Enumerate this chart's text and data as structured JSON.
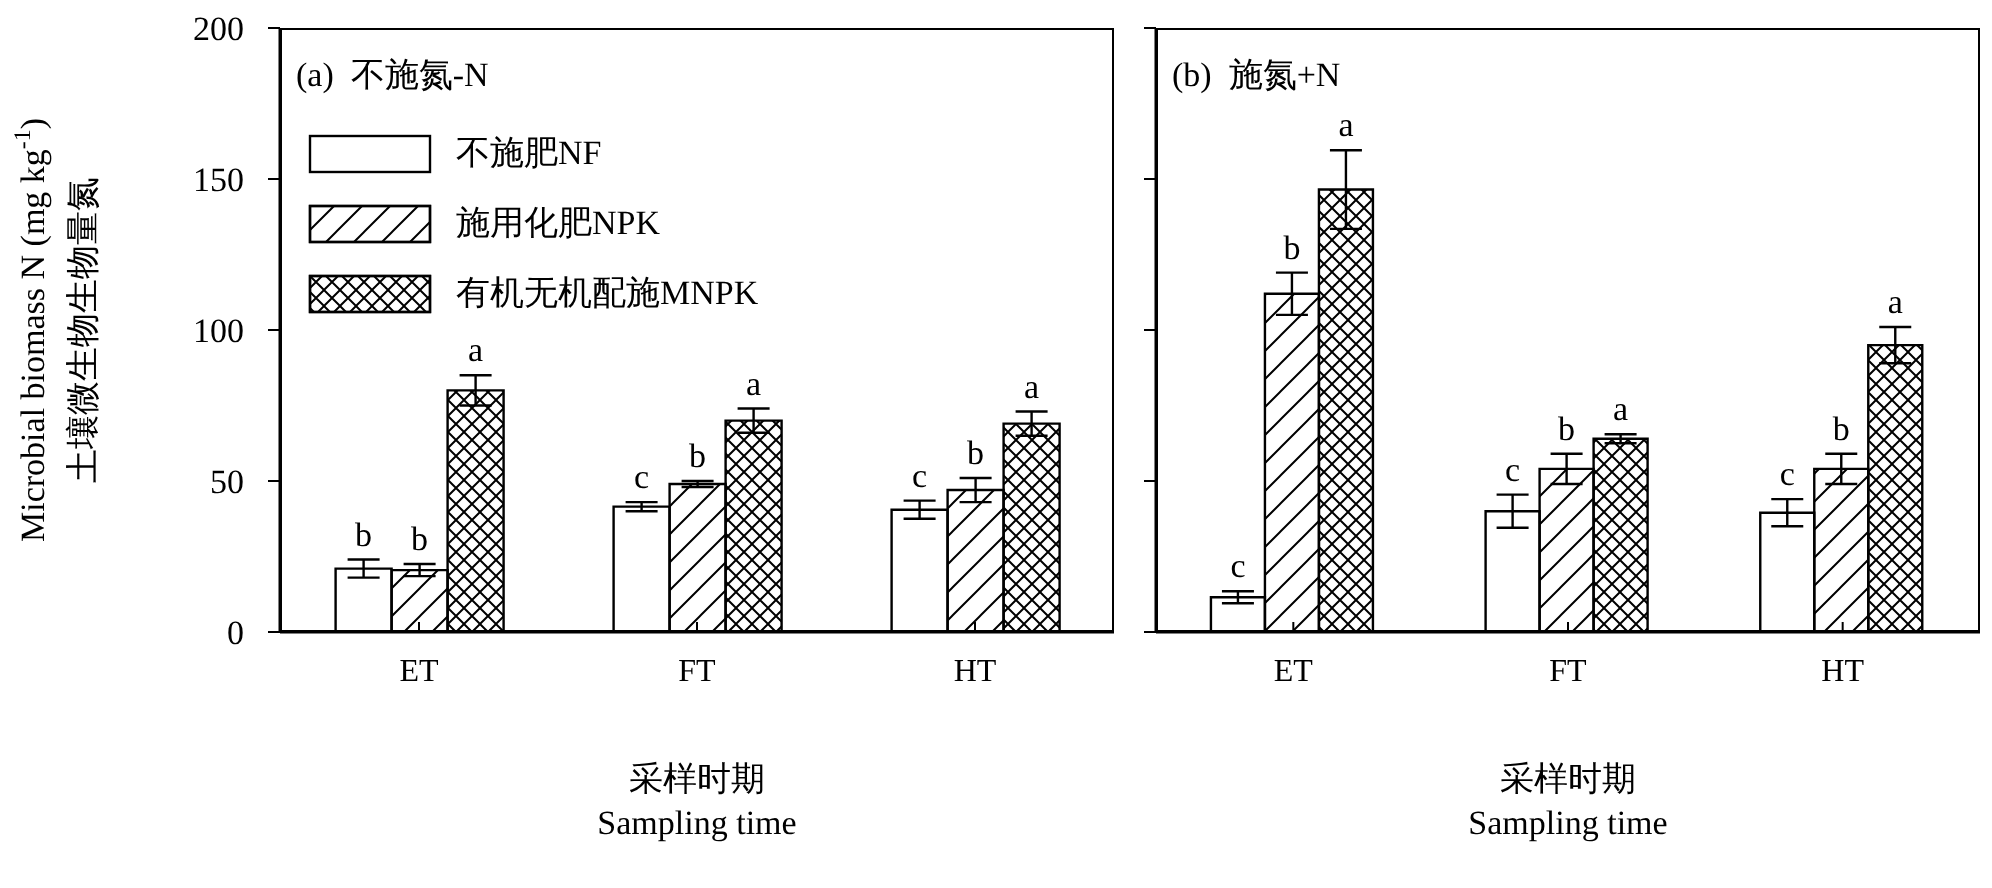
{
  "chart_data": [
    {
      "type": "bar",
      "title": "(a)  不施氮-N",
      "xlabel": "采样时期\nSampling time",
      "ylabel": "Microbial biomass N (mg kg$^{-1}$)\n土壤微生物生物量氮",
      "categories": [
        "ET",
        "FT",
        "HT"
      ],
      "series": [
        {
          "name": "不施肥NF",
          "color": "#000000",
          "values": [
            21,
            41.5,
            40.5
          ],
          "errors": [
            3,
            1.5,
            3
          ],
          "value_labels": [
            "b",
            "c",
            "c"
          ]
        },
        {
          "name": "施用化肥NPK",
          "color": "#000000",
          "values": [
            20.5,
            49,
            47
          ],
          "errors": [
            2,
            1,
            4
          ],
          "value_labels": [
            "b",
            "b",
            "b"
          ]
        },
        {
          "name": "有机无机配施MNPK",
          "color": "#000000",
          "values": [
            80,
            70,
            69
          ],
          "errors": [
            5,
            4,
            4
          ],
          "value_labels": [
            "a",
            "a",
            "a"
          ]
        }
      ],
      "ylim": [
        0,
        200
      ],
      "yticks": [
        0,
        50,
        100,
        150,
        200
      ],
      "grid": false,
      "legend": "top left"
    },
    {
      "type": "bar",
      "title": "(b)  施氮+N",
      "xlabel": "采样时期\nSampling time",
      "categories": [
        "ET",
        "FT",
        "HT"
      ],
      "series": [
        {
          "color": "#000000",
          "values": [
            11.5,
            40,
            39.5
          ],
          "errors": [
            2,
            5.5,
            4.5
          ],
          "value_labels": [
            "c",
            "c",
            "c"
          ]
        },
        {
          "color": "#000000",
          "values": [
            112,
            54,
            54
          ],
          "errors": [
            7,
            5,
            5
          ],
          "value_labels": [
            "b",
            "b",
            "b"
          ]
        },
        {
          "color": "#000000",
          "values": [
            146.5,
            64,
            95
          ],
          "errors": [
            13,
            1.5,
            6
          ],
          "value_labels": [
            "a",
            "a",
            "a"
          ]
        }
      ],
      "ylim": [
        0,
        200
      ],
      "yticks": [
        0,
        50,
        100,
        150,
        200
      ],
      "grid": false,
      "legend": false,
      "tick_labels": "x"
    }
  ]
}
